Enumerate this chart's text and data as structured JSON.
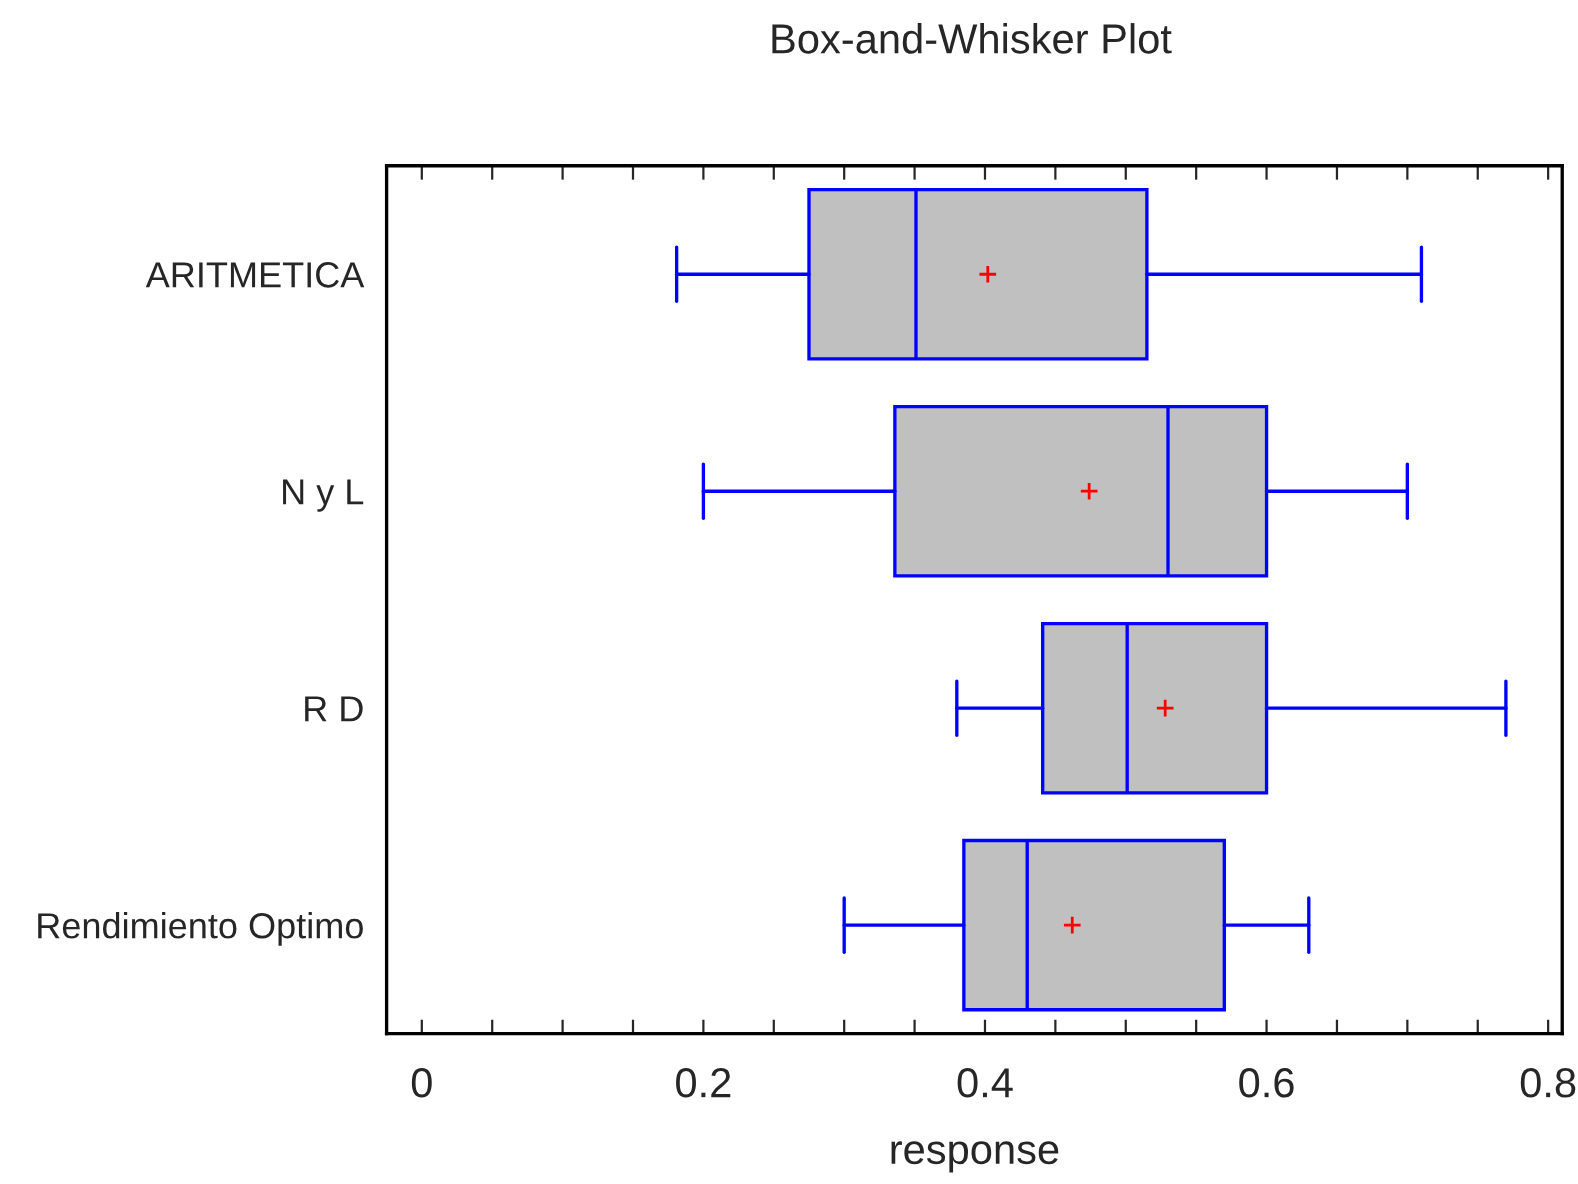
{
  "chart_data": {
    "type": "box",
    "orientation": "horizontal",
    "title": "Box-and-Whisker Plot",
    "xlabel": "response",
    "categories": [
      "ARITMETICA",
      "N y L",
      "R D",
      "Rendimiento Optimo"
    ],
    "boxes": [
      {
        "low": 0.181,
        "q1": 0.275,
        "median": 0.351,
        "q3": 0.515,
        "high": 0.71,
        "mean": 0.402
      },
      {
        "low": 0.2,
        "q1": 0.336,
        "median": 0.53,
        "q3": 0.6,
        "high": 0.7,
        "mean": 0.474
      },
      {
        "low": 0.38,
        "q1": 0.441,
        "median": 0.501,
        "q3": 0.6,
        "high": 0.77,
        "mean": 0.528
      },
      {
        "low": 0.3,
        "q1": 0.385,
        "median": 0.43,
        "q3": 0.57,
        "high": 0.63,
        "mean": 0.462
      }
    ],
    "color": "#c0c0c0",
    "xlim": [
      -0.025,
      0.81
    ],
    "xticks": [
      0,
      {
        "value": 0.05,
        "label": null
      },
      {
        "value": 0.1,
        "label": null
      },
      {
        "value": 0.15,
        "label": null
      },
      0.2,
      {
        "value": 0.25,
        "label": null
      },
      {
        "value": 0.3,
        "label": null
      },
      {
        "value": 0.35,
        "label": null
      },
      0.4,
      {
        "value": 0.45,
        "label": null
      },
      {
        "value": 0.5,
        "label": null
      },
      {
        "value": 0.55,
        "label": null
      },
      0.6,
      {
        "value": 0.65,
        "label": null
      },
      {
        "value": 0.7,
        "label": null
      },
      {
        "value": 0.75,
        "label": null
      },
      0.8
    ],
    "grid": false,
    "legend": false
  }
}
